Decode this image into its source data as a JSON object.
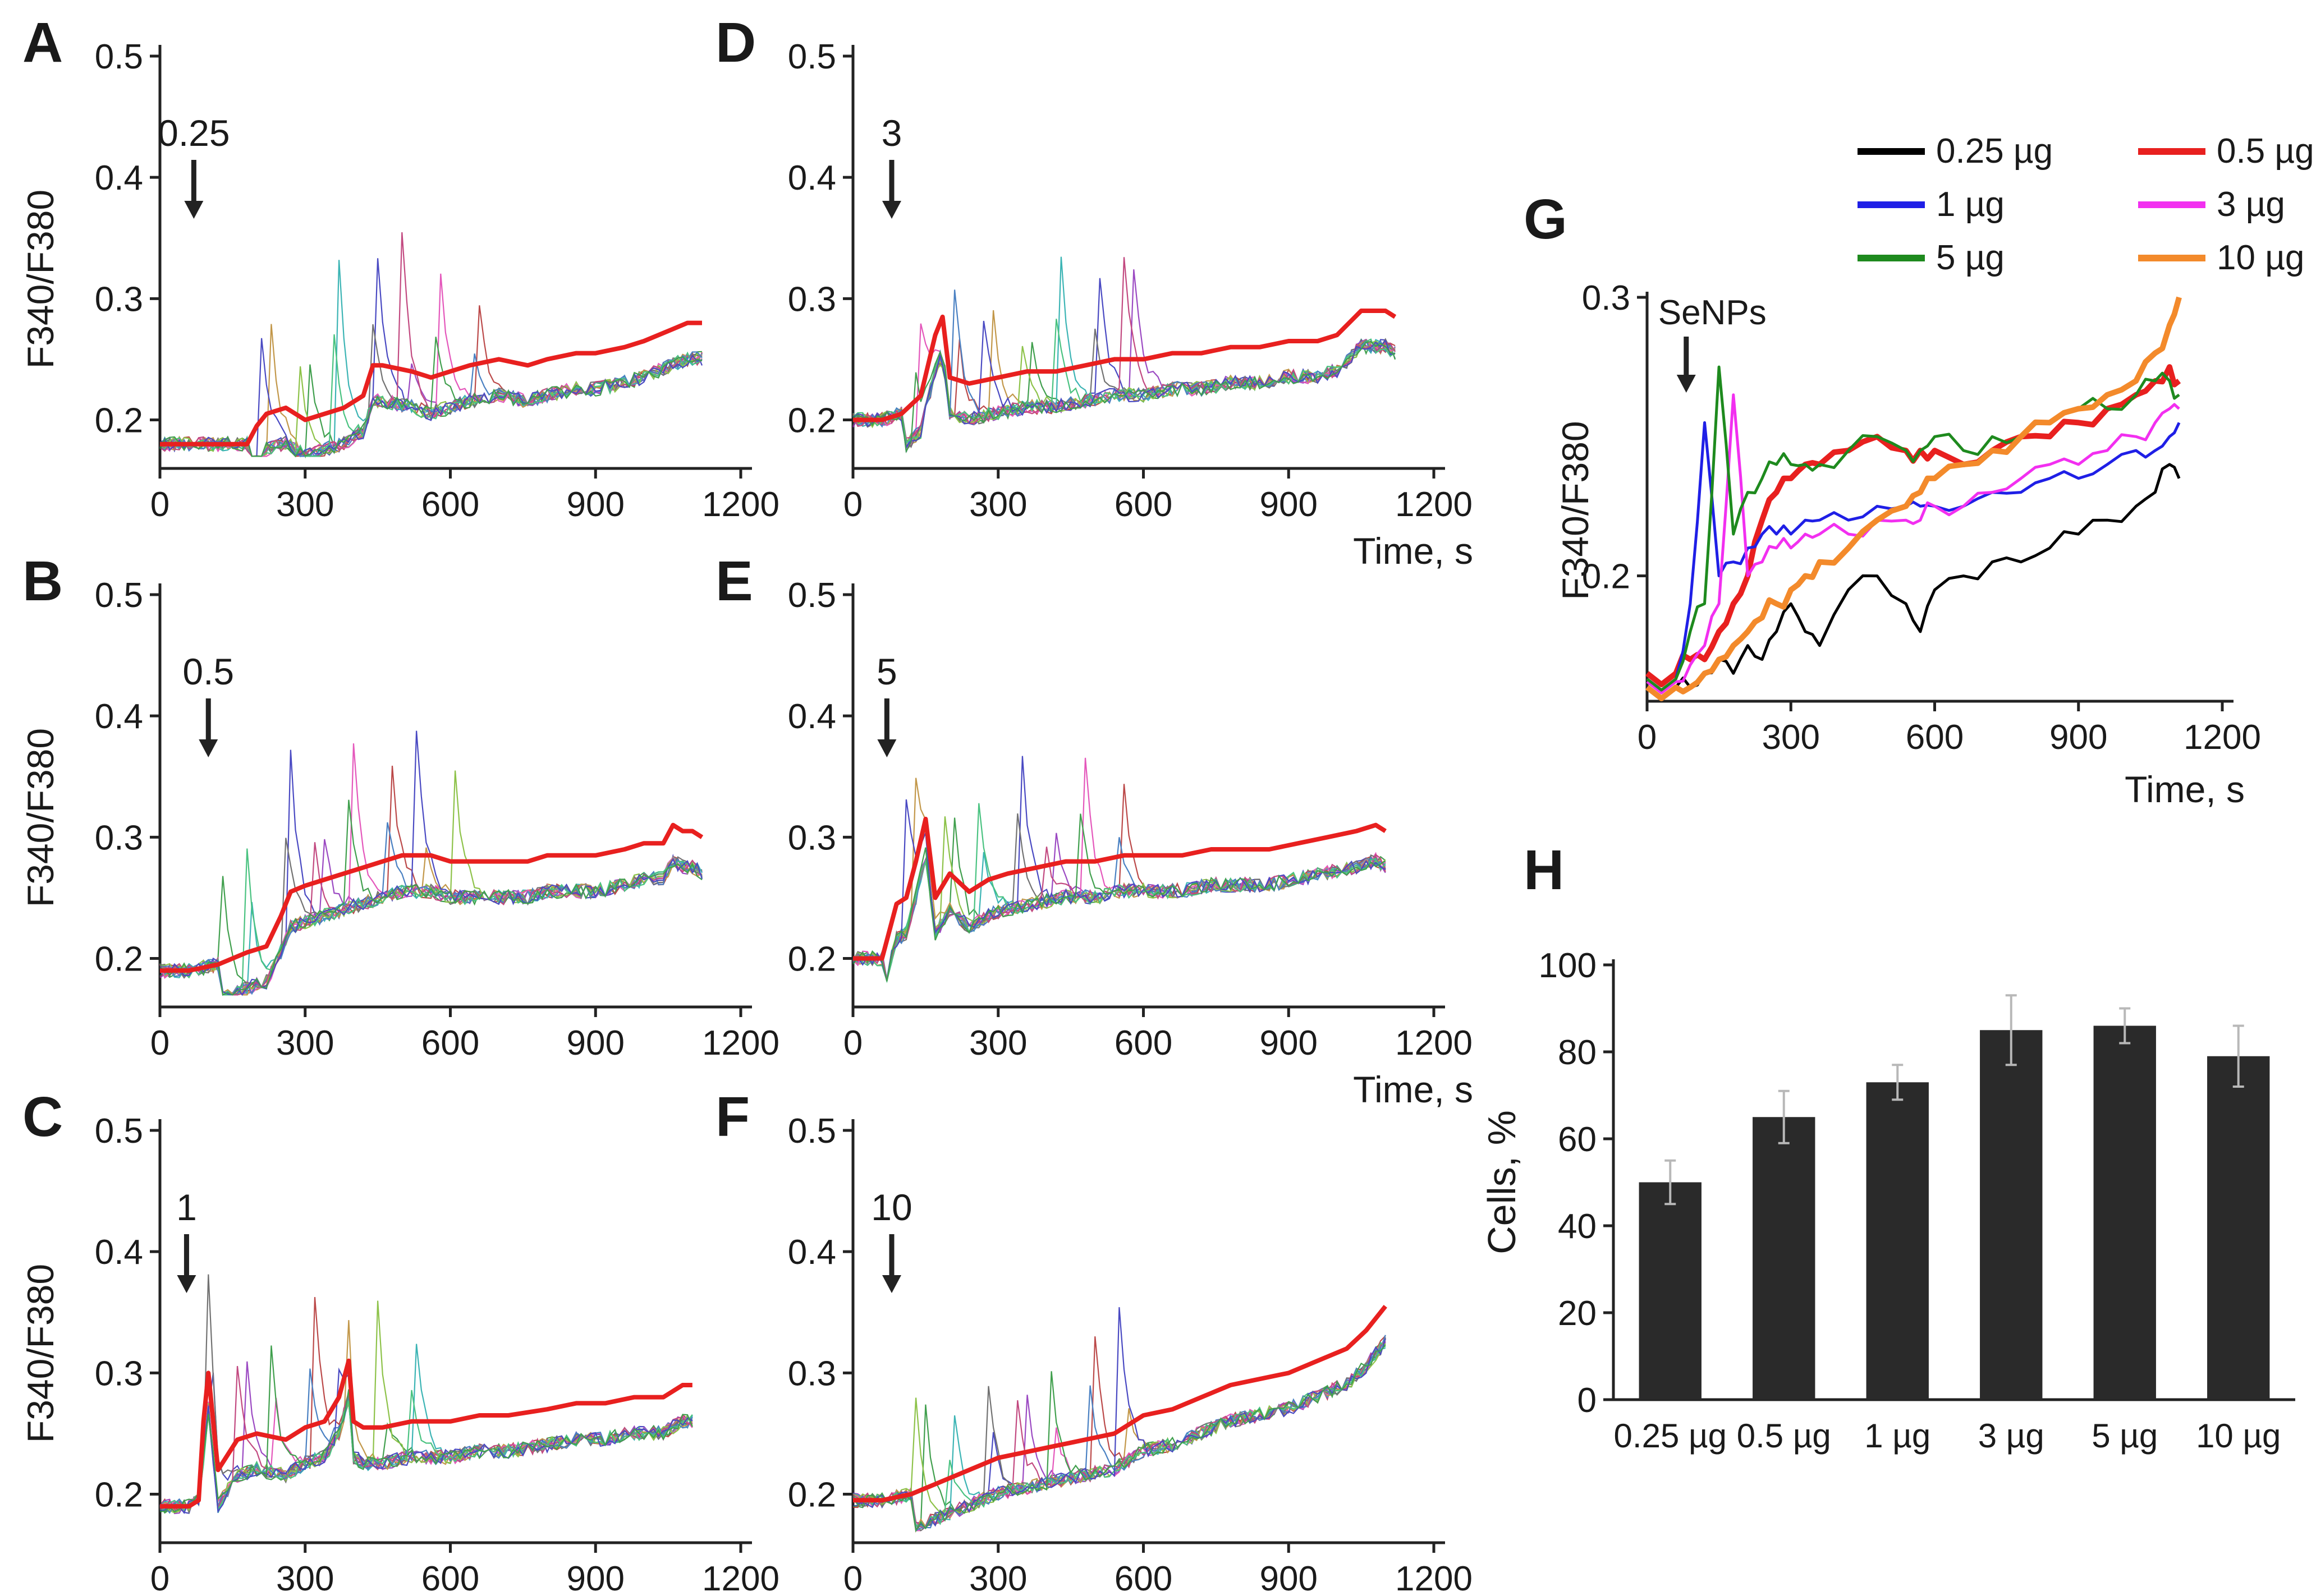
{
  "figure": {
    "panels_ts": [
      {
        "letter": "A",
        "dose_label": "0.25",
        "arrow_t": 70,
        "ylabel": "F340/F380",
        "xlabel": "",
        "xlim": [
          0,
          1200
        ],
        "xticks": [
          0,
          300,
          600,
          900,
          1200
        ],
        "ylim": [
          0.16,
          0.5
        ],
        "yticks": [
          0.2,
          0.3,
          0.4,
          0.5
        ]
      },
      {
        "letter": "B",
        "dose_label": "0.5",
        "arrow_t": 100,
        "ylabel": "F340/F380",
        "xlabel": "",
        "xlim": [
          0,
          1200
        ],
        "xticks": [
          0,
          300,
          600,
          900,
          1200
        ],
        "ylim": [
          0.16,
          0.5
        ],
        "yticks": [
          0.2,
          0.3,
          0.4,
          0.5
        ]
      },
      {
        "letter": "C",
        "dose_label": "1",
        "arrow_t": 55,
        "ylabel": "F340/F380",
        "xlabel": "",
        "xlim": [
          0,
          1200
        ],
        "xticks": [
          0,
          300,
          600,
          900,
          1200
        ],
        "ylim": [
          0.16,
          0.5
        ],
        "yticks": [
          0.2,
          0.3,
          0.4,
          0.5
        ]
      },
      {
        "letter": "D",
        "dose_label": "3",
        "arrow_t": 80,
        "ylabel": "",
        "xlabel": "Time, s",
        "xlim": [
          0,
          1200
        ],
        "xticks": [
          0,
          300,
          600,
          900,
          1200
        ],
        "ylim": [
          0.16,
          0.5
        ],
        "yticks": [
          0.2,
          0.3,
          0.4,
          0.5
        ]
      },
      {
        "letter": "E",
        "dose_label": "5",
        "arrow_t": 70,
        "ylabel": "",
        "xlabel": "Time, s",
        "xlim": [
          0,
          1200
        ],
        "xticks": [
          0,
          300,
          600,
          900,
          1200
        ],
        "ylim": [
          0.16,
          0.5
        ],
        "yticks": [
          0.2,
          0.3,
          0.4,
          0.5
        ]
      },
      {
        "letter": "F",
        "dose_label": "10",
        "arrow_t": 80,
        "ylabel": "",
        "xlabel": "",
        "xlim": [
          0,
          1200
        ],
        "xticks": [
          0,
          300,
          600,
          900,
          1200
        ],
        "ylim": [
          0.16,
          0.5
        ],
        "yticks": [
          0.2,
          0.3,
          0.4,
          0.5
        ]
      }
    ],
    "panel_g": {
      "letter": "G",
      "annotation": "SeNPs",
      "arrow_t": 70,
      "ylabel": "F340/F380",
      "xlabel": "Time, s",
      "xlim": [
        0,
        1200
      ],
      "xticks": [
        0,
        300,
        600,
        900,
        1200
      ],
      "ylim": [
        0.155,
        0.3
      ],
      "yticks": [
        0.2,
        0.3
      ]
    },
    "panel_h": {
      "letter": "H",
      "ylabel": "Cells, %"
    }
  },
  "chart_data": [
    {
      "type": "line",
      "panel": "A",
      "x": [
        0,
        60,
        120,
        180,
        200,
        220,
        260,
        300,
        340,
        380,
        420,
        440,
        460,
        520,
        560,
        600,
        640,
        700,
        760,
        800,
        860,
        900,
        960,
        1000,
        1060,
        1090,
        1120
      ],
      "series": [
        {
          "name": "mean",
          "values": [
            0.18,
            0.18,
            0.18,
            0.18,
            0.195,
            0.205,
            0.21,
            0.2,
            0.205,
            0.21,
            0.22,
            0.245,
            0.245,
            0.24,
            0.235,
            0.24,
            0.245,
            0.25,
            0.245,
            0.25,
            0.255,
            0.255,
            0.26,
            0.265,
            0.275,
            0.28,
            0.28
          ]
        }
      ]
    },
    {
      "type": "line",
      "panel": "B",
      "x": [
        0,
        60,
        120,
        180,
        220,
        250,
        270,
        300,
        340,
        380,
        420,
        460,
        500,
        560,
        600,
        660,
        700,
        760,
        800,
        860,
        900,
        960,
        1000,
        1040,
        1060,
        1080,
        1100,
        1120
      ],
      "series": [
        {
          "name": "mean",
          "values": [
            0.19,
            0.19,
            0.195,
            0.205,
            0.21,
            0.235,
            0.255,
            0.26,
            0.265,
            0.27,
            0.275,
            0.28,
            0.285,
            0.285,
            0.28,
            0.28,
            0.28,
            0.28,
            0.285,
            0.285,
            0.285,
            0.29,
            0.295,
            0.295,
            0.31,
            0.305,
            0.305,
            0.3
          ]
        }
      ]
    },
    {
      "type": "line",
      "panel": "C",
      "x": [
        0,
        60,
        80,
        90,
        100,
        120,
        160,
        200,
        260,
        300,
        340,
        370,
        390,
        400,
        420,
        460,
        520,
        600,
        660,
        720,
        800,
        860,
        920,
        980,
        1040,
        1080,
        1100
      ],
      "series": [
        {
          "name": "mean",
          "values": [
            0.19,
            0.19,
            0.195,
            0.26,
            0.3,
            0.22,
            0.245,
            0.25,
            0.245,
            0.255,
            0.26,
            0.28,
            0.31,
            0.26,
            0.255,
            0.255,
            0.26,
            0.26,
            0.265,
            0.265,
            0.27,
            0.275,
            0.275,
            0.28,
            0.28,
            0.29,
            0.29
          ]
        }
      ]
    },
    {
      "type": "line",
      "panel": "D",
      "x": [
        0,
        60,
        100,
        140,
        170,
        185,
        200,
        240,
        300,
        360,
        420,
        480,
        540,
        600,
        660,
        720,
        780,
        840,
        900,
        960,
        1000,
        1050,
        1080,
        1100,
        1120
      ],
      "series": [
        {
          "name": "mean",
          "values": [
            0.2,
            0.2,
            0.205,
            0.22,
            0.27,
            0.285,
            0.235,
            0.23,
            0.235,
            0.24,
            0.24,
            0.245,
            0.25,
            0.25,
            0.255,
            0.255,
            0.26,
            0.26,
            0.265,
            0.265,
            0.27,
            0.29,
            0.29,
            0.29,
            0.285
          ]
        }
      ]
    },
    {
      "type": "line",
      "panel": "E",
      "x": [
        0,
        60,
        90,
        110,
        130,
        150,
        170,
        200,
        240,
        280,
        320,
        380,
        440,
        500,
        560,
        620,
        680,
        740,
        800,
        860,
        920,
        980,
        1040,
        1080,
        1100
      ],
      "series": [
        {
          "name": "mean",
          "values": [
            0.2,
            0.2,
            0.245,
            0.25,
            0.28,
            0.315,
            0.25,
            0.27,
            0.255,
            0.265,
            0.27,
            0.275,
            0.28,
            0.28,
            0.285,
            0.285,
            0.285,
            0.29,
            0.29,
            0.29,
            0.295,
            0.3,
            0.305,
            0.31,
            0.305
          ]
        }
      ]
    },
    {
      "type": "line",
      "panel": "F",
      "x": [
        0,
        60,
        120,
        180,
        240,
        300,
        360,
        420,
        480,
        540,
        600,
        660,
        720,
        780,
        840,
        900,
        960,
        1020,
        1060,
        1100
      ],
      "series": [
        {
          "name": "mean",
          "values": [
            0.195,
            0.195,
            0.2,
            0.21,
            0.22,
            0.23,
            0.235,
            0.24,
            0.245,
            0.25,
            0.265,
            0.27,
            0.28,
            0.29,
            0.295,
            0.3,
            0.31,
            0.32,
            0.335,
            0.355
          ]
        }
      ]
    },
    {
      "type": "line",
      "panel": "G",
      "title": "",
      "xlabel": "Time, s",
      "ylabel": "F340/F380",
      "x": [
        0,
        60,
        90,
        120,
        150,
        180,
        210,
        240,
        270,
        300,
        330,
        360,
        420,
        480,
        540,
        570,
        600,
        660,
        720,
        780,
        840,
        900,
        960,
        1020,
        1060,
        1090,
        1110
      ],
      "series": [
        {
          "name": "0.25 µg",
          "color": "#000000",
          "values": [
            0.16,
            0.16,
            0.16,
            0.165,
            0.17,
            0.165,
            0.175,
            0.17,
            0.18,
            0.19,
            0.18,
            0.175,
            0.195,
            0.2,
            0.19,
            0.18,
            0.195,
            0.2,
            0.205,
            0.205,
            0.21,
            0.215,
            0.22,
            0.225,
            0.23,
            0.24,
            0.235
          ]
        },
        {
          "name": "0.5 µg",
          "color": "#e8201f",
          "values": [
            0.165,
            0.165,
            0.17,
            0.17,
            0.18,
            0.19,
            0.2,
            0.22,
            0.23,
            0.235,
            0.24,
            0.24,
            0.245,
            0.25,
            0.245,
            0.245,
            0.245,
            0.24,
            0.245,
            0.25,
            0.25,
            0.255,
            0.26,
            0.265,
            0.27,
            0.275,
            0.27
          ]
        },
        {
          "name": "1 µg",
          "color": "#1f1fe6",
          "values": [
            0.163,
            0.163,
            0.19,
            0.255,
            0.2,
            0.205,
            0.21,
            0.215,
            0.215,
            0.215,
            0.22,
            0.22,
            0.22,
            0.225,
            0.225,
            0.225,
            0.225,
            0.225,
            0.23,
            0.23,
            0.235,
            0.235,
            0.24,
            0.245,
            0.245,
            0.25,
            0.255
          ]
        },
        {
          "name": "3 µg",
          "color": "#f22ff0",
          "values": [
            0.162,
            0.162,
            0.168,
            0.175,
            0.19,
            0.265,
            0.2,
            0.205,
            0.21,
            0.21,
            0.215,
            0.215,
            0.215,
            0.22,
            0.22,
            0.22,
            0.225,
            0.225,
            0.23,
            0.235,
            0.24,
            0.24,
            0.245,
            0.25,
            0.255,
            0.26,
            0.26
          ]
        },
        {
          "name": "5 µg",
          "color": "#1e8a1e",
          "values": [
            0.163,
            0.163,
            0.18,
            0.19,
            0.275,
            0.215,
            0.23,
            0.235,
            0.24,
            0.24,
            0.24,
            0.24,
            0.245,
            0.25,
            0.245,
            0.245,
            0.25,
            0.245,
            0.25,
            0.25,
            0.255,
            0.26,
            0.26,
            0.265,
            0.27,
            0.27,
            0.265
          ]
        },
        {
          "name": "10 µg",
          "color": "#f38a2b",
          "values": [
            0.16,
            0.16,
            0.16,
            0.165,
            0.17,
            0.175,
            0.18,
            0.185,
            0.19,
            0.195,
            0.2,
            0.205,
            0.21,
            0.22,
            0.225,
            0.23,
            0.235,
            0.24,
            0.245,
            0.25,
            0.255,
            0.26,
            0.265,
            0.27,
            0.28,
            0.29,
            0.3
          ]
        }
      ],
      "legend": {
        "position": "top-right",
        "columns": 2
      }
    },
    {
      "type": "bar",
      "panel": "H",
      "title": "",
      "xlabel": "",
      "ylabel": "Cells, %",
      "categories": [
        "0.25 µg",
        "0.5 µg",
        "1 µg",
        "3 µg",
        "5 µg",
        "10 µg"
      ],
      "values": [
        50,
        65,
        73,
        85,
        86,
        79
      ],
      "errors": [
        5,
        6,
        4,
        8,
        4,
        7
      ],
      "ylim": [
        0,
        100
      ],
      "yticks": [
        0,
        20,
        40,
        60,
        80,
        100
      ],
      "color": "#2a2a2a"
    }
  ]
}
